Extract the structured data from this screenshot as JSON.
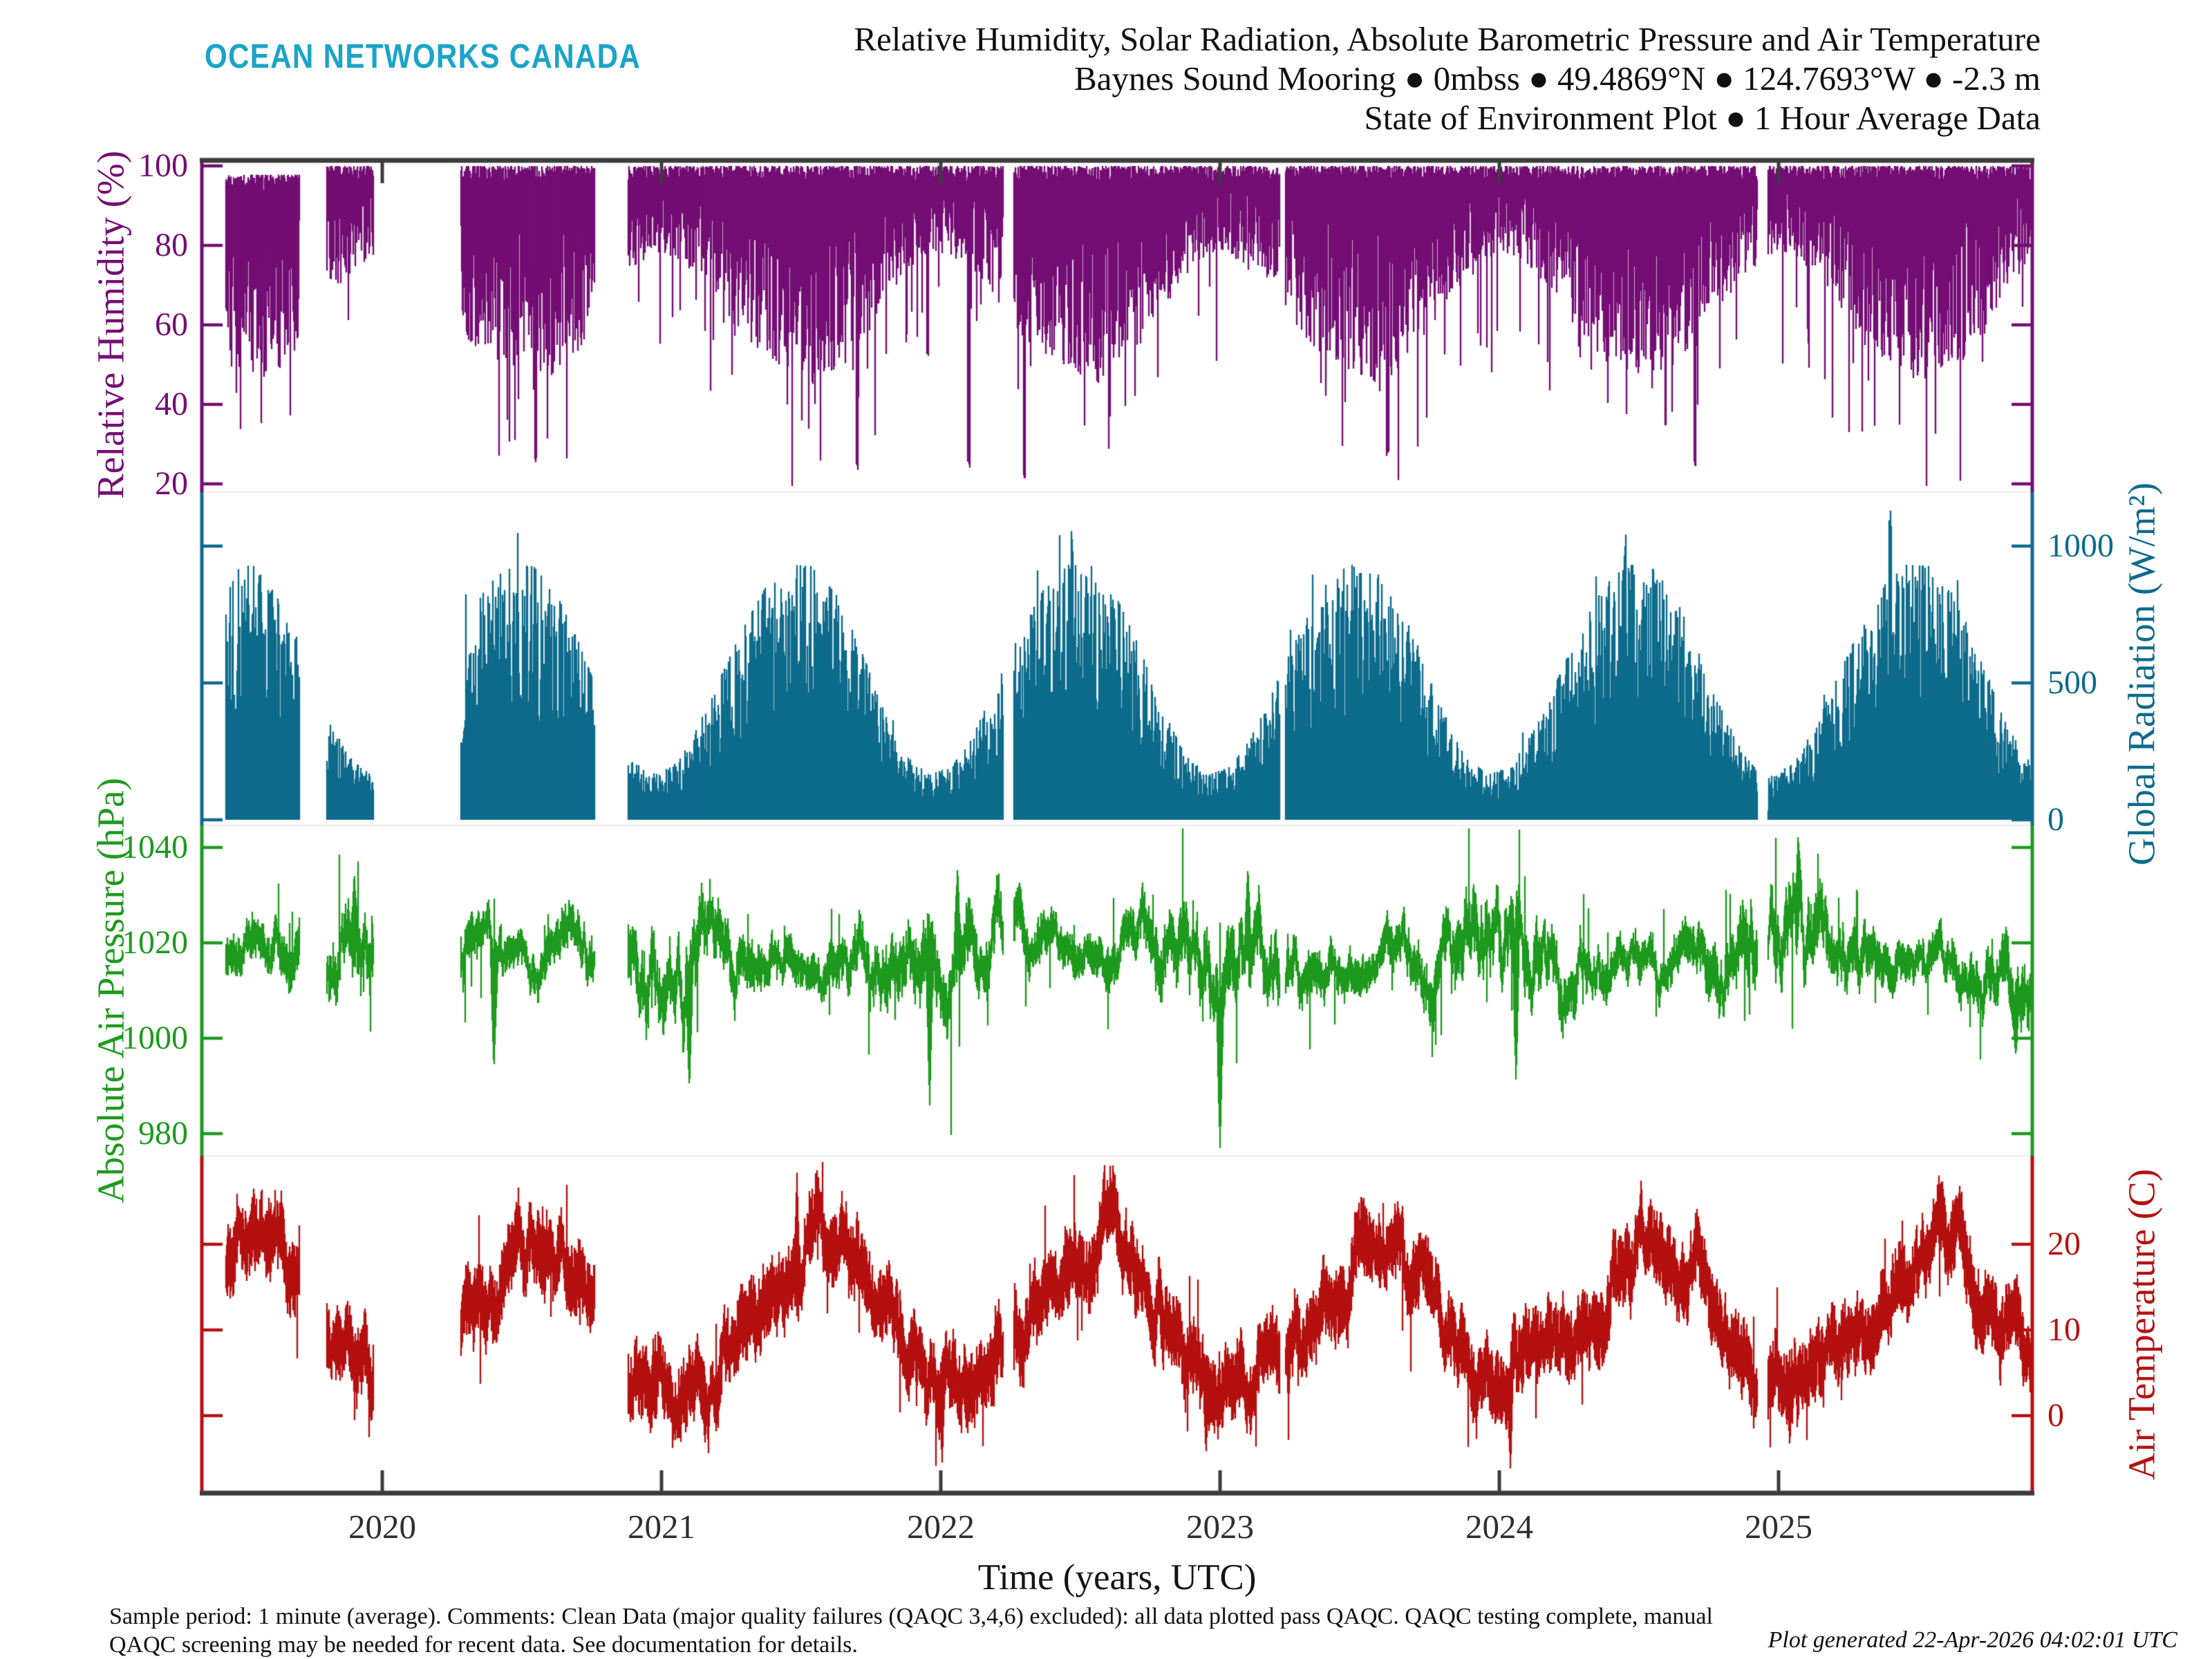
{
  "header": {
    "logo": "OCEAN NETWORKS CANADA",
    "logo_color": "#1ba3c9",
    "title_line1": "Relative Humidity, Solar Radiation, Absolute Barometric Pressure and Air Temperature",
    "title_line2": "Baynes Sound Mooring ● 0mbss ● 49.4869°N ● 124.7693°W ● -2.3 m",
    "title_line3": "State of Environment Plot ● 1 Hour Average Data"
  },
  "footer": {
    "note_line1": "Sample period: 1 minute (average). Comments: Clean Data (major quality failures (QAQC 3,4,6) excluded): all data plotted pass QAQC. QAQC testing complete, manual",
    "note_line2": "QAQC screening may be needed for recent data. See documentation for details.",
    "generated": "Plot generated 22-Apr-2026 04:02:01 UTC"
  },
  "xaxis": {
    "label": "Time (years, UTC)",
    "tick_labels": [
      "2020",
      "2021",
      "2022",
      "2023",
      "2024",
      "2025"
    ],
    "tick_values": [
      2020,
      2021,
      2022,
      2023,
      2024,
      2025
    ]
  },
  "chart_data": {
    "type": "line",
    "title": "Relative Humidity, Solar Radiation, Absolute Barometric Pressure and Air Temperature",
    "subtitle": "Baynes Sound Mooring, 0mbss, 49.4869N 124.7693W, -2.3 m, 1 Hour Average Data",
    "x": {
      "label": "Time (years, UTC)",
      "axis_range": [
        2019.35,
        2025.91
      ],
      "data_start": 2019.44,
      "data_end": 2025.9,
      "ticks": [
        2020,
        2021,
        2022,
        2023,
        2024,
        2025
      ]
    },
    "gaps": [
      [
        2019.705,
        2019.8
      ],
      [
        2019.97,
        2020.28
      ],
      [
        2020.76,
        2020.88
      ],
      [
        2022.225,
        2022.262
      ],
      [
        2023.215,
        2023.235
      ],
      [
        2024.925,
        2024.962
      ]
    ],
    "panels": [
      {
        "id": "relative_humidity",
        "label": "Relative Humidity (%)",
        "color": "#740e74",
        "tick_side": "left",
        "ticks": [
          100,
          80,
          60,
          40,
          20
        ],
        "ylim": [
          18,
          101
        ],
        "pattern": "hourly values hugging 92-100% with downward spikes; deeper drying dips in summer",
        "typical_max": 100,
        "monthly_typical_min": [
          80,
          76,
          70,
          62,
          58,
          55,
          52,
          54,
          60,
          68,
          76,
          80
        ],
        "extreme_low_events": [
          {
            "t": 2020.55,
            "rh": 25
          },
          {
            "t": 2021.7,
            "rh": 23
          },
          {
            "t": 2022.3,
            "rh": 21
          },
          {
            "t": 2022.1,
            "rh": 24
          },
          {
            "t": 2023.6,
            "rh": 27
          },
          {
            "t": 2024.7,
            "rh": 24
          }
        ],
        "render": {
          "seed": 11
        }
      },
      {
        "id": "global_radiation",
        "label": "Global Radiation (W/m²)",
        "color": "#0e6b8c",
        "tick_side": "right",
        "ticks": [
          1000,
          500,
          0
        ],
        "ylim": [
          0,
          1200
        ],
        "pattern": "daily solar maxima as stems from 0; seasonal envelope peaks ~900 in summer, ~170 in winter",
        "monthly_daily_max": [
          190,
          320,
          500,
          680,
          830,
          905,
          900,
          800,
          620,
          400,
          230,
          160
        ],
        "extreme_high_events": [
          {
            "t": 2025.4,
            "wm2": 1150
          },
          {
            "t": 2022.47,
            "wm2": 1050
          },
          {
            "t": 2024.45,
            "wm2": 1030
          }
        ],
        "render": {
          "seed": 22
        }
      },
      {
        "id": "absolute_air_pressure",
        "label": "Absolute Air Pressure (hPa)",
        "color": "#1e9a1e",
        "tick_side": "left",
        "ticks": [
          1040,
          1020,
          1000,
          980
        ],
        "ylim": [
          974,
          1046
        ],
        "mean": 1016.5,
        "pattern": "synoptic-scale variability around ~1016 hPa; larger swings in winter",
        "events": [
          {
            "t": 2019.9,
            "hpa": 1035
          },
          {
            "t": 2020.4,
            "hpa": 993
          },
          {
            "t": 2021.1,
            "hpa": 989
          },
          {
            "t": 2021.96,
            "hpa": 985
          },
          {
            "t": 2022.06,
            "hpa": 1036
          },
          {
            "t": 2023.0,
            "hpa": 977
          },
          {
            "t": 2023.1,
            "hpa": 1036
          },
          {
            "t": 2024.06,
            "hpa": 990
          },
          {
            "t": 2025.07,
            "hpa": 1043
          },
          {
            "t": 2025.85,
            "hpa": 996
          }
        ],
        "render": {
          "seed": 33
        }
      },
      {
        "id": "air_temperature",
        "label": "Air Temperature (C)",
        "color": "#b51111",
        "tick_side": "right",
        "ticks": [
          20,
          10,
          0
        ],
        "ylim": [
          -9,
          31
        ],
        "pattern": "seasonal cycle ~4C winter to ~19.5C summer with daily spread",
        "monthly_mean": [
          4.2,
          5.0,
          6.8,
          9.8,
          13.5,
          16.5,
          19.3,
          19.6,
          16.5,
          11.5,
          7.0,
          4.5
        ],
        "events": [
          {
            "t": 2021.485,
            "c": 28.5
          },
          {
            "t": 2022.005,
            "c": -5.5
          },
          {
            "t": 2022.95,
            "c": -4.5
          },
          {
            "t": 2024.04,
            "c": -6.5
          },
          {
            "t": 2025.04,
            "c": -3.5
          }
        ],
        "render": {
          "seed": 44
        }
      }
    ]
  }
}
